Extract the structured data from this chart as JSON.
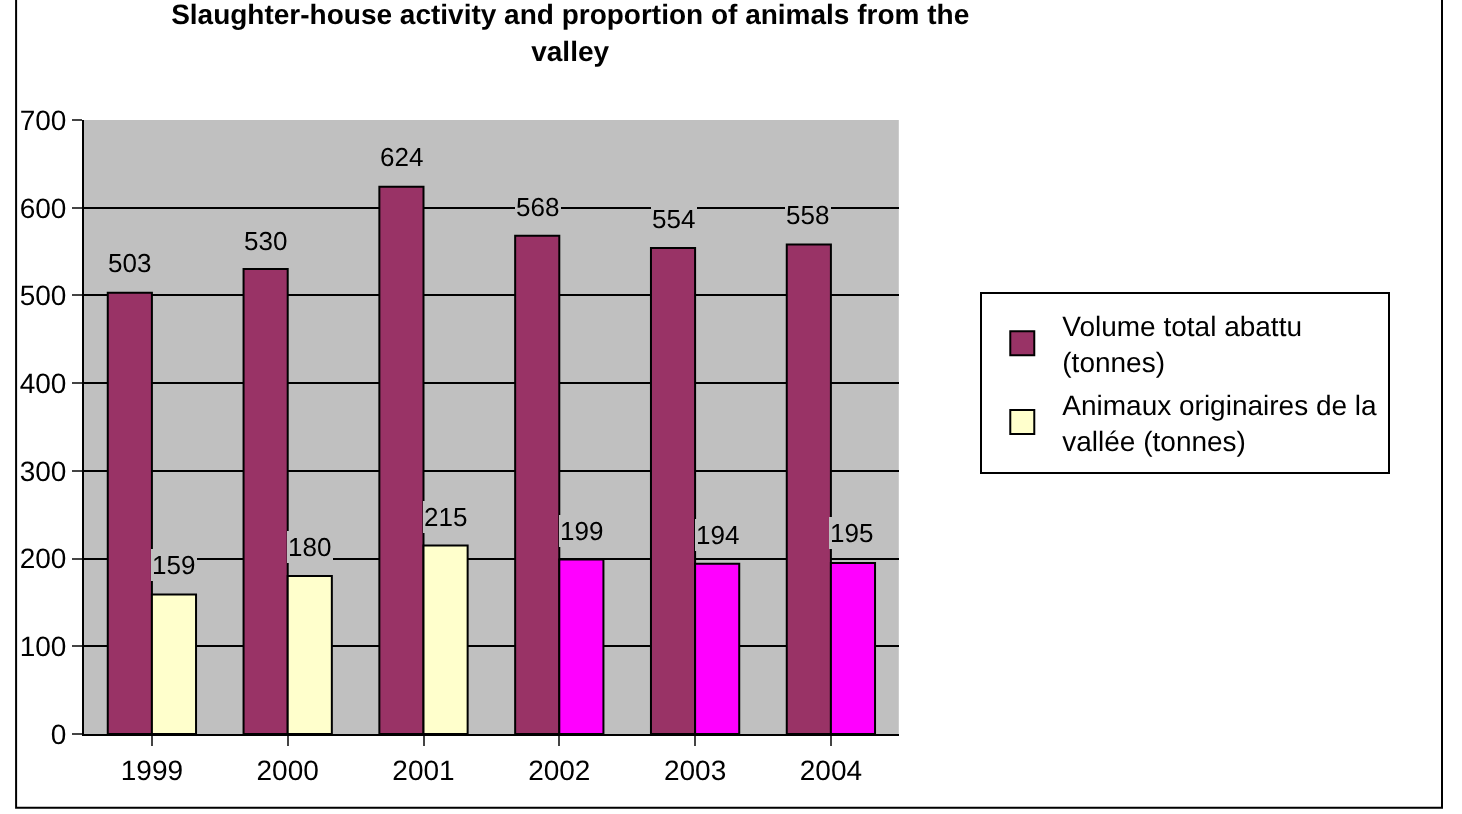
{
  "chart_data": {
    "type": "bar",
    "title": "Slaughter-house activity and proportion of animals from the valley",
    "categories": [
      "1999",
      "2000",
      "2001",
      "2002",
      "2003",
      "2004"
    ],
    "series": [
      {
        "name": "Volume total abattu (tonnes)",
        "color": "#993366",
        "values": [
          503,
          530,
          624,
          568,
          554,
          558
        ]
      },
      {
        "name": "Animaux originaires de la vallée (tonnes)",
        "color": "#ffffcc",
        "colors": [
          "#ffffcc",
          "#ffffcc",
          "#ffffcc",
          "#ff00ff",
          "#ff00ff",
          "#ff00ff"
        ],
        "values": [
          159,
          180,
          215,
          199,
          194,
          195
        ]
      }
    ],
    "ylim": [
      0,
      700
    ],
    "yticks": [
      0,
      100,
      200,
      300,
      400,
      500,
      600,
      700
    ],
    "grid": "y",
    "legend": "right",
    "data_labels": true
  }
}
